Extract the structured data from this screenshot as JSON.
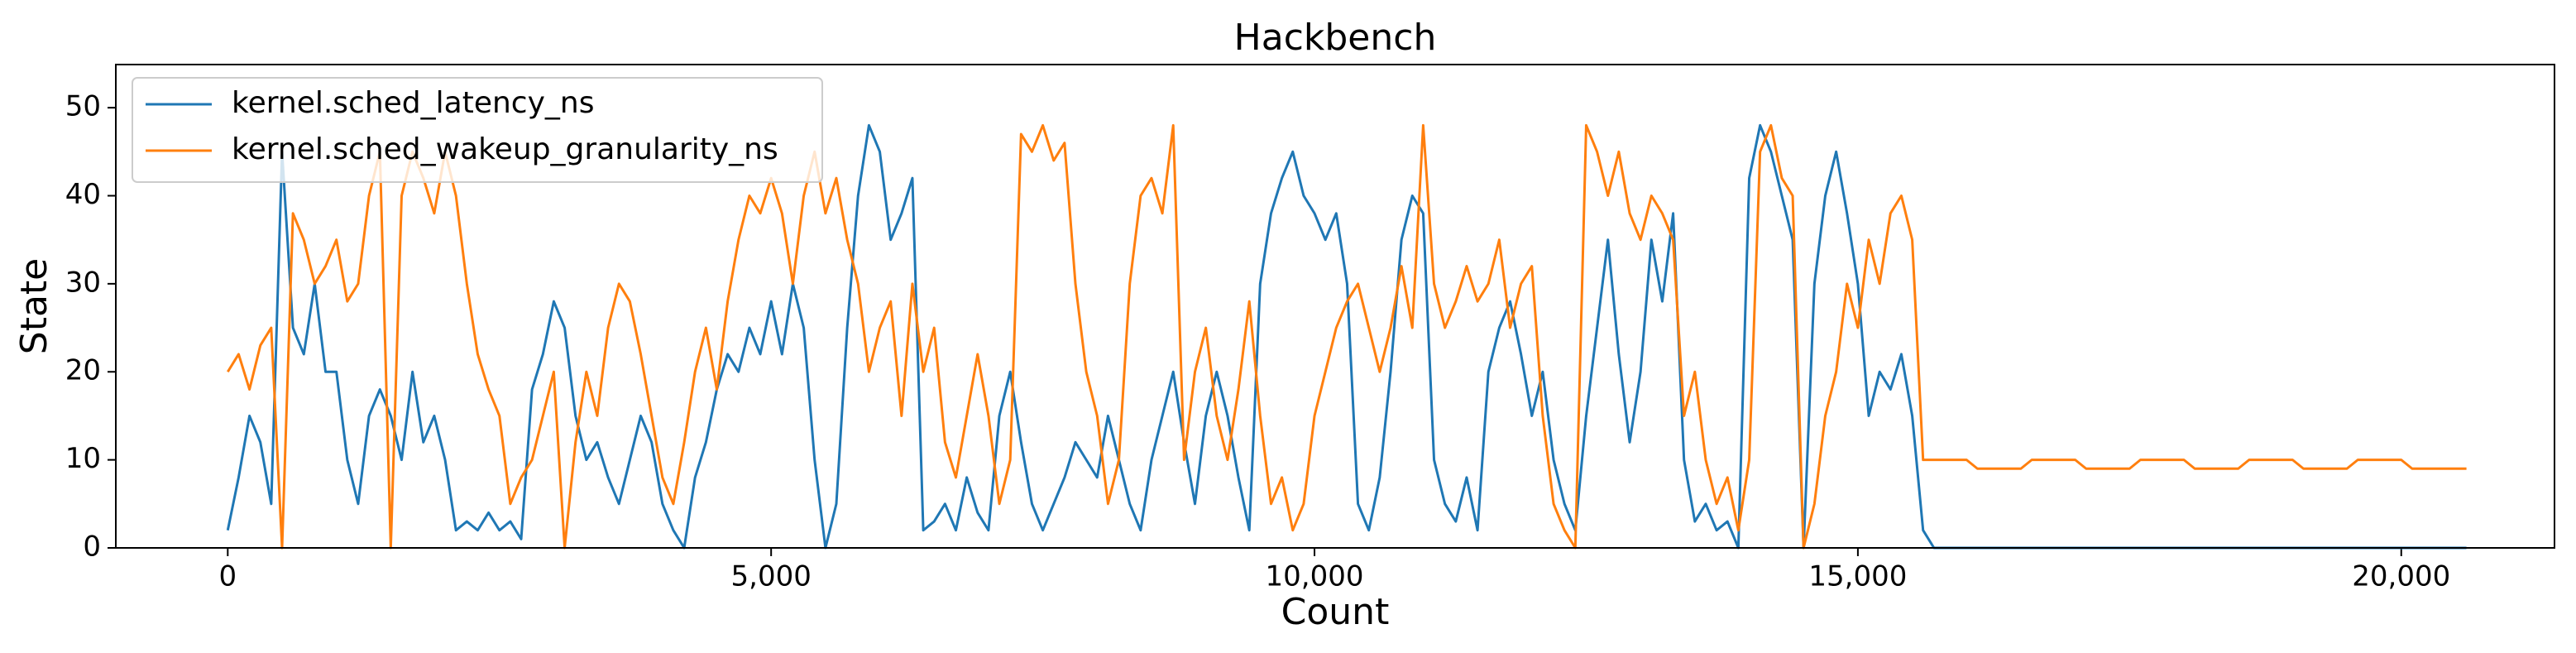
{
  "chart_data": {
    "type": "line",
    "title": "Hackbench",
    "xlabel": "Count",
    "ylabel": "State",
    "xlim": [
      -1030,
      21410
    ],
    "ylim": [
      0,
      54.9
    ],
    "xticks": [
      0,
      {
        "value": 5000,
        "label": "5,000"
      },
      {
        "value": 10000,
        "label": "10,000"
      },
      {
        "value": 15000,
        "label": "15,000"
      },
      {
        "value": 20000,
        "label": "20,000"
      }
    ],
    "yticks": [
      0,
      10,
      20,
      30,
      40,
      50
    ],
    "grid": false,
    "legend": "upper left",
    "x": [
      0,
      100,
      200,
      300,
      400,
      500,
      600,
      700,
      800,
      900,
      1000,
      1100,
      1200,
      1300,
      1400,
      1500,
      1600,
      1700,
      1800,
      1900,
      2000,
      2100,
      2200,
      2300,
      2400,
      2500,
      2600,
      2700,
      2800,
      2900,
      3000,
      3100,
      3200,
      3300,
      3400,
      3500,
      3600,
      3700,
      3800,
      3900,
      4000,
      4100,
      4200,
      4300,
      4400,
      4500,
      4600,
      4700,
      4800,
      4900,
      5000,
      5100,
      5200,
      5300,
      5400,
      5500,
      5600,
      5700,
      5800,
      5900,
      6000,
      6100,
      6200,
      6300,
      6400,
      6500,
      6600,
      6700,
      6800,
      6900,
      7000,
      7100,
      7200,
      7300,
      7400,
      7500,
      7600,
      7700,
      7800,
      7900,
      8000,
      8100,
      8200,
      8300,
      8400,
      8500,
      8600,
      8700,
      8800,
      8900,
      9000,
      9100,
      9200,
      9300,
      9400,
      9500,
      9600,
      9700,
      9800,
      9900,
      10000,
      10100,
      10200,
      10300,
      10400,
      10500,
      10600,
      10700,
      10800,
      10900,
      11000,
      11100,
      11200,
      11300,
      11400,
      11500,
      11600,
      11700,
      11800,
      11900,
      12000,
      12100,
      12200,
      12300,
      12400,
      12500,
      12600,
      12700,
      12800,
      12900,
      13000,
      13100,
      13200,
      13300,
      13400,
      13500,
      13600,
      13700,
      13800,
      13900,
      14000,
      14100,
      14200,
      14300,
      14400,
      14500,
      14600,
      14700,
      14800,
      14900,
      15000,
      15100,
      15200,
      15300,
      15400,
      15500,
      15600,
      15700,
      15800,
      15900,
      16000,
      16100,
      16200,
      16300,
      16400,
      16500,
      16600,
      16700,
      16800,
      16900,
      17000,
      17100,
      17200,
      17300,
      17400,
      17500,
      17600,
      17700,
      17800,
      17900,
      18000,
      18100,
      18200,
      18300,
      18400,
      18500,
      18600,
      18700,
      18800,
      18900,
      19000,
      19100,
      19200,
      19300,
      19400,
      19500,
      19600,
      19700,
      19800,
      19900,
      20000,
      20100,
      20200,
      20300,
      20400,
      20500,
      20600
    ],
    "series": [
      {
        "name": "kernel.sched_latency_ns",
        "color": "#1f77b4",
        "values": [
          2,
          8,
          15,
          12,
          5,
          45,
          25,
          22,
          30,
          20,
          20,
          10,
          5,
          15,
          18,
          15,
          10,
          20,
          12,
          15,
          10,
          2,
          3,
          2,
          4,
          2,
          3,
          1,
          18,
          22,
          28,
          25,
          15,
          10,
          12,
          8,
          5,
          10,
          15,
          12,
          5,
          2,
          0,
          8,
          12,
          18,
          22,
          20,
          25,
          22,
          28,
          22,
          30,
          25,
          10,
          0,
          5,
          25,
          40,
          48,
          45,
          35,
          38,
          42,
          2,
          3,
          5,
          2,
          8,
          4,
          2,
          15,
          20,
          12,
          5,
          2,
          5,
          8,
          12,
          10,
          8,
          15,
          10,
          5,
          2,
          10,
          15,
          20,
          12,
          5,
          15,
          20,
          15,
          8,
          2,
          30,
          38,
          42,
          45,
          40,
          38,
          35,
          38,
          30,
          5,
          2,
          8,
          20,
          35,
          40,
          38,
          10,
          5,
          3,
          8,
          2,
          20,
          25,
          28,
          22,
          15,
          20,
          10,
          5,
          2,
          15,
          25,
          35,
          22,
          12,
          20,
          35,
          28,
          38,
          10,
          3,
          5,
          2,
          3,
          0,
          42,
          48,
          45,
          40,
          35,
          0,
          30,
          40,
          45,
          38,
          30,
          15,
          20,
          18,
          22,
          15,
          2,
          0,
          0,
          0,
          0,
          0,
          0,
          0,
          0,
          0,
          0,
          0,
          0,
          0,
          0,
          0,
          0,
          0,
          0,
          0,
          0,
          0,
          0,
          0,
          0,
          0,
          0,
          0,
          0,
          0,
          0,
          0,
          0,
          0,
          0,
          0,
          0,
          0,
          0,
          0,
          0,
          0,
          0,
          0,
          0,
          0,
          0,
          0,
          0,
          0,
          0
        ]
      },
      {
        "name": "kernel.sched_wakeup_granularity_ns",
        "color": "#ff7f0e",
        "values": [
          20,
          22,
          18,
          23,
          25,
          0,
          38,
          35,
          30,
          32,
          35,
          28,
          30,
          40,
          45,
          0,
          40,
          45,
          42,
          38,
          45,
          40,
          30,
          22,
          18,
          15,
          5,
          8,
          10,
          15,
          20,
          0,
          12,
          20,
          15,
          25,
          30,
          28,
          22,
          15,
          8,
          5,
          12,
          20,
          25,
          18,
          28,
          35,
          40,
          38,
          42,
          38,
          30,
          40,
          45,
          38,
          42,
          35,
          30,
          20,
          25,
          28,
          15,
          30,
          20,
          25,
          12,
          8,
          15,
          22,
          15,
          5,
          10,
          47,
          45,
          48,
          44,
          46,
          30,
          20,
          15,
          5,
          10,
          30,
          40,
          42,
          38,
          48,
          10,
          20,
          25,
          15,
          10,
          18,
          28,
          15,
          5,
          8,
          2,
          5,
          15,
          20,
          25,
          28,
          30,
          25,
          20,
          25,
          32,
          25,
          48,
          30,
          25,
          28,
          32,
          28,
          30,
          35,
          25,
          30,
          32,
          15,
          5,
          2,
          0,
          48,
          45,
          40,
          45,
          38,
          35,
          40,
          38,
          35,
          15,
          20,
          10,
          5,
          8,
          2,
          10,
          45,
          48,
          42,
          40,
          0,
          5,
          15,
          20,
          30,
          25,
          35,
          30,
          38,
          40,
          35,
          10,
          10,
          10,
          10,
          10,
          9,
          9,
          9,
          9,
          9,
          10,
          10,
          10,
          10,
          10,
          9,
          9,
          9,
          9,
          9,
          10,
          10,
          10,
          10,
          10,
          9,
          9,
          9,
          9,
          9,
          10,
          10,
          10,
          10,
          10,
          9,
          9,
          9,
          9,
          9,
          10,
          10,
          10,
          10,
          10,
          9,
          9,
          9,
          9,
          9,
          9
        ]
      }
    ]
  }
}
